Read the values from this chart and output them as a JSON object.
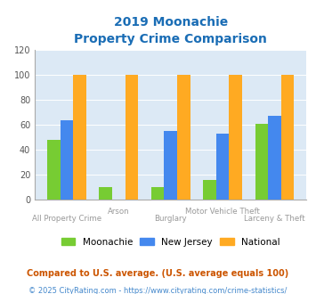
{
  "title_line1": "2019 Moonachie",
  "title_line2": "Property Crime Comparison",
  "categories": [
    "All Property Crime",
    "Arson",
    "Burglary",
    "Motor Vehicle Theft",
    "Larceny & Theft"
  ],
  "moonachie": [
    48,
    10,
    10,
    16,
    61
  ],
  "new_jersey": [
    64,
    0,
    55,
    53,
    67
  ],
  "national": [
    100,
    100,
    100,
    100,
    100
  ],
  "colors": {
    "moonachie": "#77cc33",
    "new_jersey": "#4488ee",
    "national": "#ffaa22"
  },
  "ylim": [
    0,
    120
  ],
  "yticks": [
    0,
    20,
    40,
    60,
    80,
    100,
    120
  ],
  "bg_color": "#dce9f5",
  "legend_labels": [
    "Moonachie",
    "New Jersey",
    "National"
  ],
  "footnote1": "Compared to U.S. average. (U.S. average equals 100)",
  "footnote2": "© 2025 CityRating.com - https://www.cityrating.com/crime-statistics/",
  "title_color": "#1a6db5",
  "footnote1_color": "#cc5500",
  "footnote2_color": "#4488cc",
  "xlabel_color": "#999999",
  "bar_width": 0.25
}
